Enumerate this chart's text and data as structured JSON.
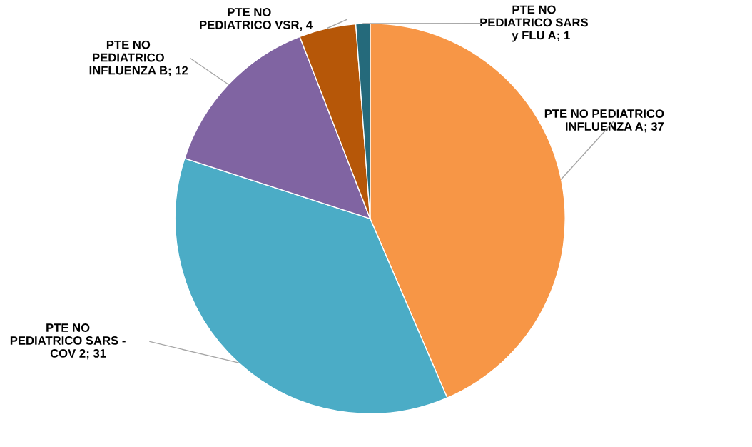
{
  "chart_data": {
    "type": "pie",
    "categories": [
      "PTE NO PEDIATRICO\nINFLUENZA A",
      "PTE NO\nPEDIATRICO SARS -\nCOV 2",
      "PTE NO\nPEDIATRICO\nINFLUENZA B",
      "PTE NO\nPEDIATRICO VSR",
      "PTE NO\nPEDIATRICO SARS\ny FLU A"
    ],
    "values": [
      37,
      31,
      12,
      4,
      1
    ],
    "colors": [
      "#f79646",
      "#4bacc6",
      "#8064a2",
      "#b65708",
      "#256a7b"
    ],
    "value_labels": [
      "; 37",
      "; 31",
      "; 12",
      ", 4",
      "; 1"
    ]
  }
}
